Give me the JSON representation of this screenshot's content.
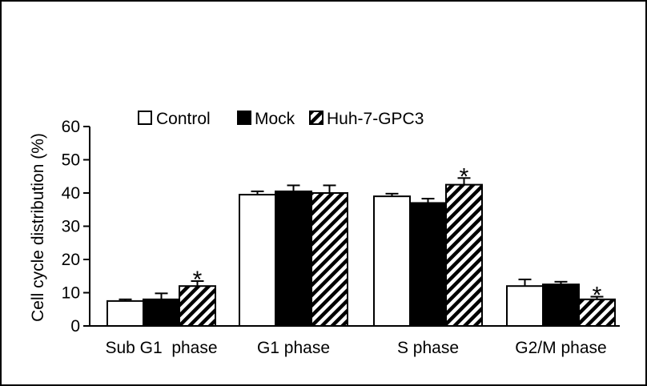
{
  "chart_data": {
    "type": "bar",
    "ylabel": "Cell cycle distribution (%)",
    "xlabel": "",
    "ylim": [
      0,
      60
    ],
    "yticks": [
      0,
      10,
      20,
      30,
      40,
      50,
      60
    ],
    "categories": [
      "Sub G1  phase",
      "G1 phase",
      "S phase",
      "G2/M phase"
    ],
    "series": [
      {
        "name": "Control",
        "fill": "#ffffff",
        "pattern": "none",
        "values": [
          7.5,
          39.5,
          39,
          12
        ],
        "errors": [
          0.5,
          1.0,
          0.8,
          2.0
        ]
      },
      {
        "name": "Mock",
        "fill": "#000000",
        "pattern": "none",
        "values": [
          8,
          40.5,
          37,
          12.5
        ],
        "errors": [
          1.8,
          1.8,
          1.3,
          0.8
        ]
      },
      {
        "name": "Huh-7-GPC3",
        "fill": "#ffffff",
        "pattern": "diagonal-hatch",
        "values": [
          12,
          40,
          42.5,
          8
        ],
        "errors": [
          1.5,
          2.3,
          2.0,
          0.8
        ]
      }
    ],
    "significance_marker": "*",
    "significant": [
      [
        2,
        0
      ],
      [
        2,
        2
      ],
      [
        2,
        3
      ]
    ],
    "legend_position": "top",
    "grid": false
  }
}
